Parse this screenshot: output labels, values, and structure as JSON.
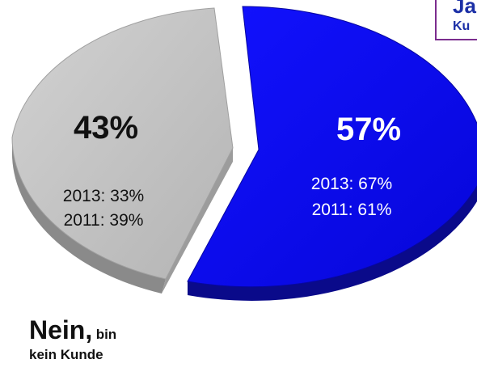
{
  "chart_data": {
    "type": "pie",
    "slices": [
      {
        "label": "Ja",
        "value": 57,
        "value_label": "57%",
        "color": "#0b0bf0",
        "side_color": "#0a0a8a",
        "lines": [
          "2013: 67%",
          "2011: 61%"
        ]
      },
      {
        "label": "Nein, bin kein Kunde",
        "value": 43,
        "value_label": "43%",
        "color": "#c3c3c3",
        "side_color": "#8a8a8a",
        "lines": [
          "2013: 33%",
          "2011: 39%"
        ]
      }
    ]
  },
  "legend": {
    "ja": "Ja",
    "ku": "Ku"
  },
  "nein_label": {
    "main": "Nein,",
    "rest": "bin",
    "line2": "kein Kunde"
  }
}
